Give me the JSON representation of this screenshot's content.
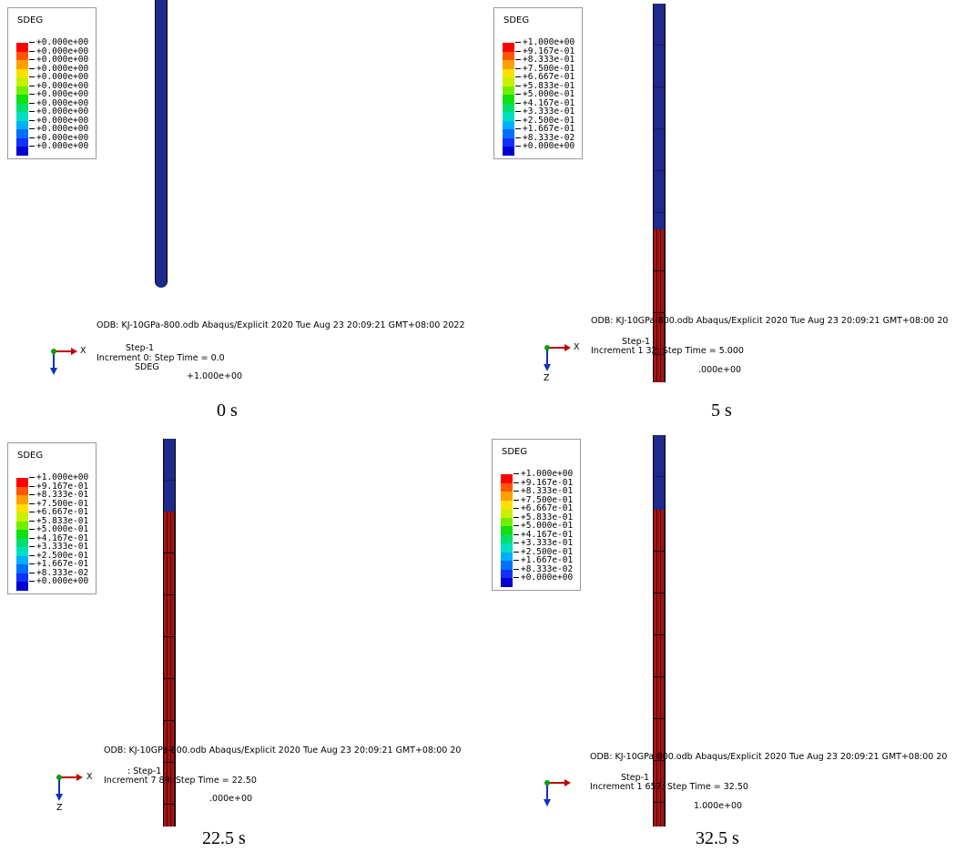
{
  "legend_title": "SDEG",
  "colors": [
    "#ff0000",
    "#ff5500",
    "#ff9f00",
    "#ffe000",
    "#c8f000",
    "#70f000",
    "#10e010",
    "#00e070",
    "#00e0c0",
    "#00b0ff",
    "#0070ff",
    "#1030ff",
    "#0000d0"
  ],
  "bar_colors": {
    "damaged": "#a31414",
    "intact": "#1e2a8c"
  },
  "panels": [
    {
      "legend_values": [
        "+0.000e+00",
        "+0.000e+00",
        "+0.000e+00",
        "+0.000e+00",
        "+0.000e+00",
        "+0.000e+00",
        "+0.000e+00",
        "+0.000e+00",
        "+0.000e+00",
        "+0.000e+00",
        "+0.000e+00",
        "+0.000e+00",
        "+0.000e+00"
      ],
      "odb": "ODB: KJ-10GPa-800.odb   Abaqus/Explicit 2020   Tue Aug 23 20:09:21 GMT+08:00 2022",
      "step": "Step-1",
      "increment": "Increment         0: Step Time = 0.0",
      "var": "SDEG",
      "primary": "+1.000e+00",
      "axis_x": "X",
      "axis_z": "Z",
      "caption": "0 s",
      "damaged_fraction": 0.0
    },
    {
      "legend_values": [
        "+1.000e+00",
        "+9.167e-01",
        "+8.333e-01",
        "+7.500e-01",
        "+6.667e-01",
        "+5.833e-01",
        "+5.000e-01",
        "+4.167e-01",
        "+3.333e-01",
        "+2.500e-01",
        "+1.667e-01",
        "+8.333e-02",
        "+0.000e+00"
      ],
      "odb": "ODB: KJ-10GPa-800.odb   Abaqus/Explicit 2020   Tue Aug 23 20:09:21 GMT+08:00 20",
      "step": "Step-1",
      "increment": "Increment   1  32: Step Time =    5.000",
      "var": "",
      "primary": ".000e+00",
      "axis_x": "X",
      "axis_z": "Z",
      "caption": "5 s",
      "damaged_fraction": 0.5
    },
    {
      "legend_values": [
        "+1.000e+00",
        "+9.167e-01",
        "+8.333e-01",
        "+7.500e-01",
        "+6.667e-01",
        "+5.833e-01",
        "+5.000e-01",
        "+4.167e-01",
        "+3.333e-01",
        "+2.500e-01",
        "+1.667e-01",
        "+8.333e-02",
        "+0.000e+00"
      ],
      "odb": "ODB: KJ-10GPa-800.odb   Abaqus/Explicit 2020   Tue Aug 23 20:09:21 GMT+08:00 20",
      "step": ": Step-1",
      "increment": "Increment      7  89: Step Time =    22.50",
      "var": "",
      "primary": ".000e+00",
      "axis_x": "X",
      "axis_z": "Z",
      "caption": "22.5 s",
      "damaged_fraction": 0.81
    },
    {
      "legend_values": [
        "+1.000e+00",
        "+9.167e-01",
        "+8.333e-01",
        "+7.500e-01",
        "+6.667e-01",
        "+5.833e-01",
        "+5.000e-01",
        "+4.167e-01",
        "+3.333e-01",
        "+2.500e-01",
        "+1.667e-01",
        "+8.333e-02",
        "+0.000e+00"
      ],
      "odb": "ODB: KJ-10GPa-800.odb   Abaqus/Explicit 2020   Tue Aug 23 20:09:21 GMT+08:00 20",
      "step": "Step-1",
      "increment": "Increment   1  657: Step Time =    32.50",
      "var": "",
      "primary": "1.000e+00",
      "axis_x": "X",
      "axis_z": "Z",
      "caption": "32.5 s",
      "damaged_fraction": 0.81
    }
  ]
}
